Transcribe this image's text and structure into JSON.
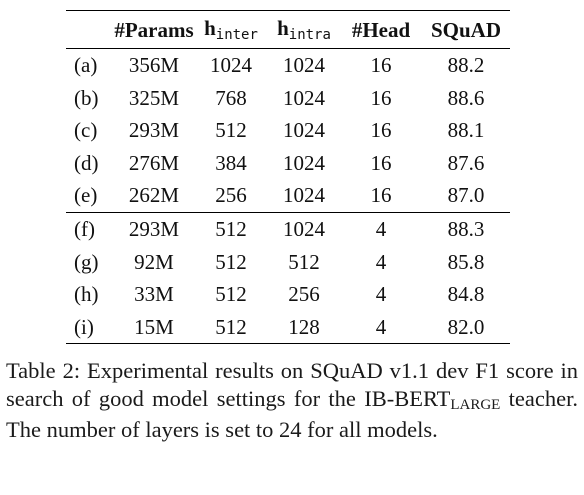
{
  "table": {
    "headers": [
      {
        "main": "",
        "sub": ""
      },
      {
        "main": "#Params",
        "sub": ""
      },
      {
        "main": "h",
        "sub": "inter"
      },
      {
        "main": "h",
        "sub": "intra"
      },
      {
        "main": "#Head",
        "sub": ""
      },
      {
        "main": "SQuAD",
        "sub": ""
      }
    ],
    "rows": [
      [
        "(a)",
        "356M",
        "1024",
        "1024",
        "16",
        "88.2"
      ],
      [
        "(b)",
        "325M",
        "768",
        "1024",
        "16",
        "88.6"
      ],
      [
        "(c)",
        "293M",
        "512",
        "1024",
        "16",
        "88.1"
      ],
      [
        "(d)",
        "276M",
        "384",
        "1024",
        "16",
        "87.6"
      ],
      [
        "(e)",
        "262M",
        "256",
        "1024",
        "16",
        "87.0"
      ],
      [
        "(f)",
        "293M",
        "512",
        "1024",
        "4",
        "88.3"
      ],
      [
        "(g)",
        "92M",
        "512",
        "512",
        "4",
        "85.8"
      ],
      [
        "(h)",
        "33M",
        "512",
        "256",
        "4",
        "84.8"
      ],
      [
        "(i)",
        "15M",
        "512",
        "128",
        "4",
        "82.0"
      ]
    ]
  },
  "caption": {
    "part1": "Table 2: Experimental results on SQuAD v1.1 dev F1 score in search of good model settings for the IB-BERT",
    "subscript": "LARGE",
    "part2": " teacher. The number of layers is set to 24 for all models."
  }
}
